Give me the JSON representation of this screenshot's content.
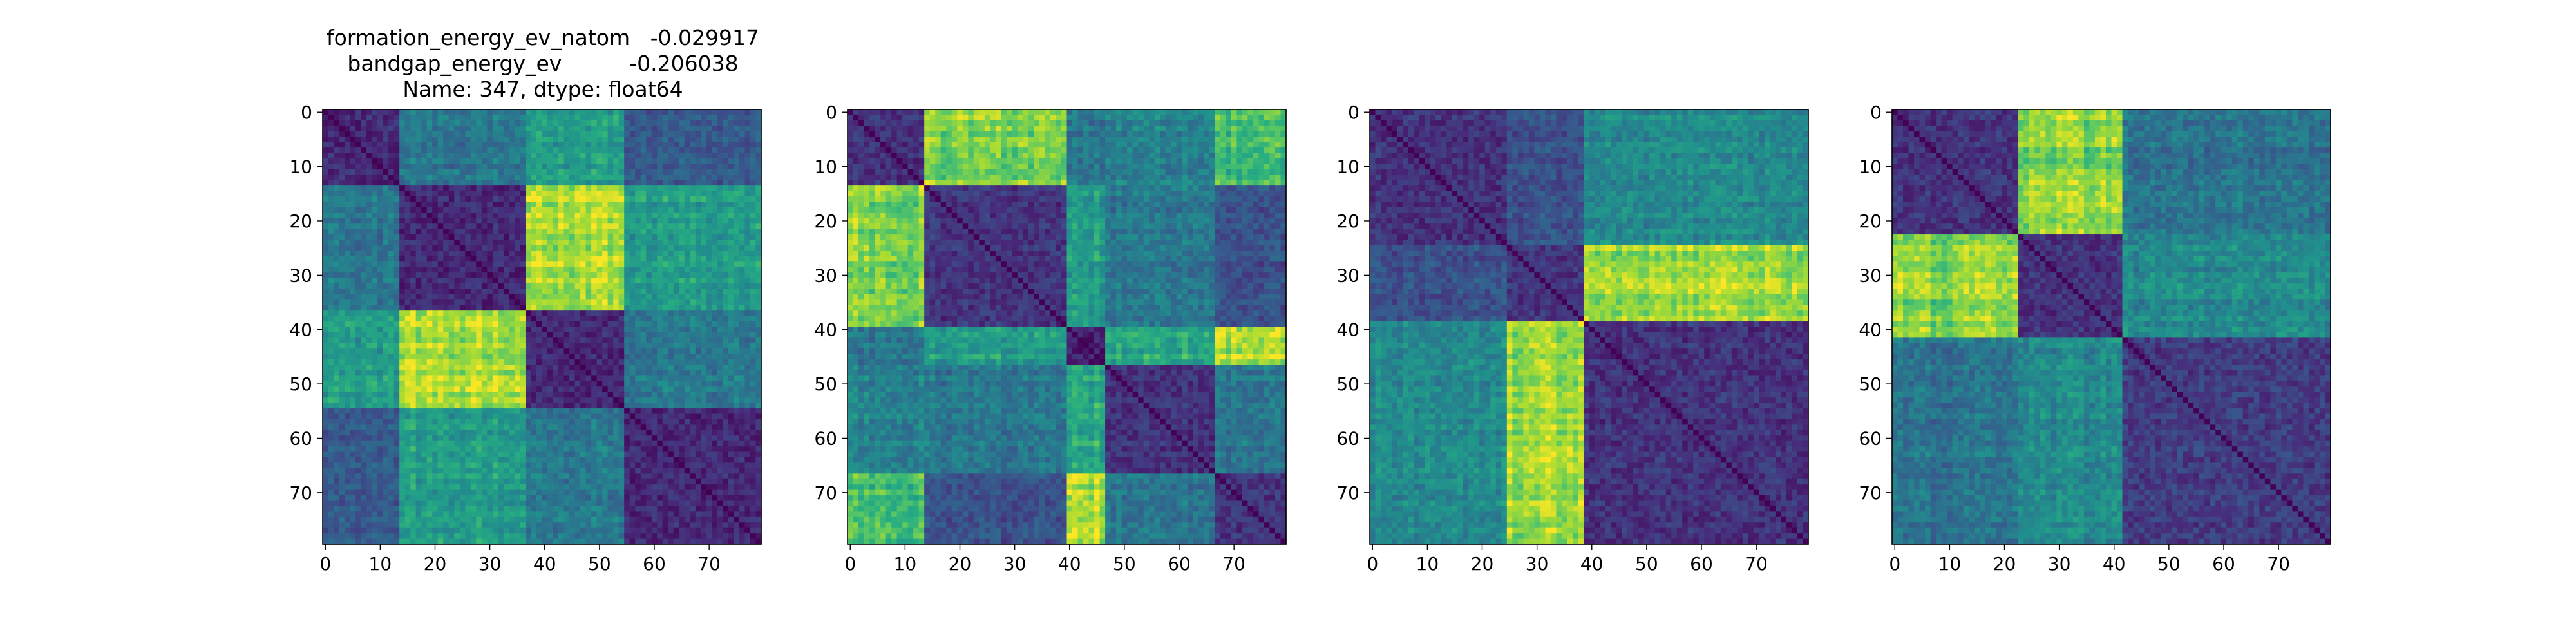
{
  "figure": {
    "title_lines": [
      "formation_energy_ev_natom   -0.029917",
      "bandgap_energy_ev          -0.206038",
      "Name: 347, dtype: float64"
    ]
  },
  "chart_data": [
    {
      "type": "heatmap",
      "title": "",
      "xlabel": "",
      "ylabel": "",
      "size": 80,
      "xlim": [
        0,
        79
      ],
      "ylim": [
        79,
        0
      ],
      "xticks": [
        0,
        10,
        20,
        30,
        40,
        50,
        60,
        70
      ],
      "yticks": [
        0,
        10,
        20,
        30,
        40,
        50,
        60,
        70
      ],
      "colormap": "viridis",
      "value_range": [
        0,
        1
      ],
      "blocks": [
        {
          "start": 0,
          "end": 13
        },
        {
          "start": 14,
          "end": 36
        },
        {
          "start": 37,
          "end": 54
        },
        {
          "start": 55,
          "end": 79
        }
      ],
      "block_levels": [
        [
          0.12,
          0.4,
          0.55,
          0.28
        ],
        [
          0.4,
          0.12,
          0.88,
          0.55
        ],
        [
          0.55,
          0.88,
          0.12,
          0.4
        ],
        [
          0.28,
          0.55,
          0.4,
          0.12
        ]
      ]
    },
    {
      "type": "heatmap",
      "title": "",
      "xlabel": "",
      "ylabel": "",
      "size": 80,
      "xlim": [
        0,
        79
      ],
      "ylim": [
        79,
        0
      ],
      "xticks": [
        0,
        10,
        20,
        30,
        40,
        50,
        60,
        70
      ],
      "yticks": [
        0,
        10,
        20,
        30,
        40,
        50,
        60,
        70
      ],
      "colormap": "viridis",
      "value_range": [
        0,
        1
      ],
      "blocks": [
        {
          "start": 0,
          "end": 13
        },
        {
          "start": 14,
          "end": 39
        },
        {
          "start": 40,
          "end": 46
        },
        {
          "start": 47,
          "end": 66
        },
        {
          "start": 67,
          "end": 79
        }
      ],
      "block_levels": [
        [
          0.15,
          0.8,
          0.4,
          0.45,
          0.7
        ],
        [
          0.8,
          0.15,
          0.55,
          0.4,
          0.25
        ],
        [
          0.4,
          0.55,
          0.1,
          0.6,
          0.9
        ],
        [
          0.45,
          0.4,
          0.6,
          0.15,
          0.4
        ],
        [
          0.7,
          0.25,
          0.9,
          0.4,
          0.15
        ]
      ]
    },
    {
      "type": "heatmap",
      "title": "",
      "xlabel": "",
      "ylabel": "",
      "size": 80,
      "xlim": [
        0,
        79
      ],
      "ylim": [
        79,
        0
      ],
      "xticks": [
        0,
        10,
        20,
        30,
        40,
        50,
        60,
        70
      ],
      "yticks": [
        0,
        10,
        20,
        30,
        40,
        50,
        60,
        70
      ],
      "colormap": "viridis",
      "value_range": [
        0,
        1
      ],
      "blocks": [
        {
          "start": 0,
          "end": 24
        },
        {
          "start": 25,
          "end": 38
        },
        {
          "start": 39,
          "end": 79
        }
      ],
      "block_levels": [
        [
          0.15,
          0.25,
          0.48
        ],
        [
          0.25,
          0.15,
          0.85
        ],
        [
          0.48,
          0.85,
          0.15
        ]
      ]
    },
    {
      "type": "heatmap",
      "title": "",
      "xlabel": "",
      "ylabel": "",
      "size": 80,
      "xlim": [
        0,
        79
      ],
      "ylim": [
        79,
        0
      ],
      "xticks": [
        0,
        10,
        20,
        30,
        40,
        50,
        60,
        70
      ],
      "yticks": [
        0,
        10,
        20,
        30,
        40,
        50,
        60,
        70
      ],
      "colormap": "viridis",
      "value_range": [
        0,
        1
      ],
      "blocks": [
        {
          "start": 0,
          "end": 22
        },
        {
          "start": 23,
          "end": 41
        },
        {
          "start": 42,
          "end": 79
        }
      ],
      "block_levels": [
        [
          0.15,
          0.82,
          0.38
        ],
        [
          0.82,
          0.15,
          0.48
        ],
        [
          0.38,
          0.48,
          0.18
        ]
      ]
    }
  ]
}
